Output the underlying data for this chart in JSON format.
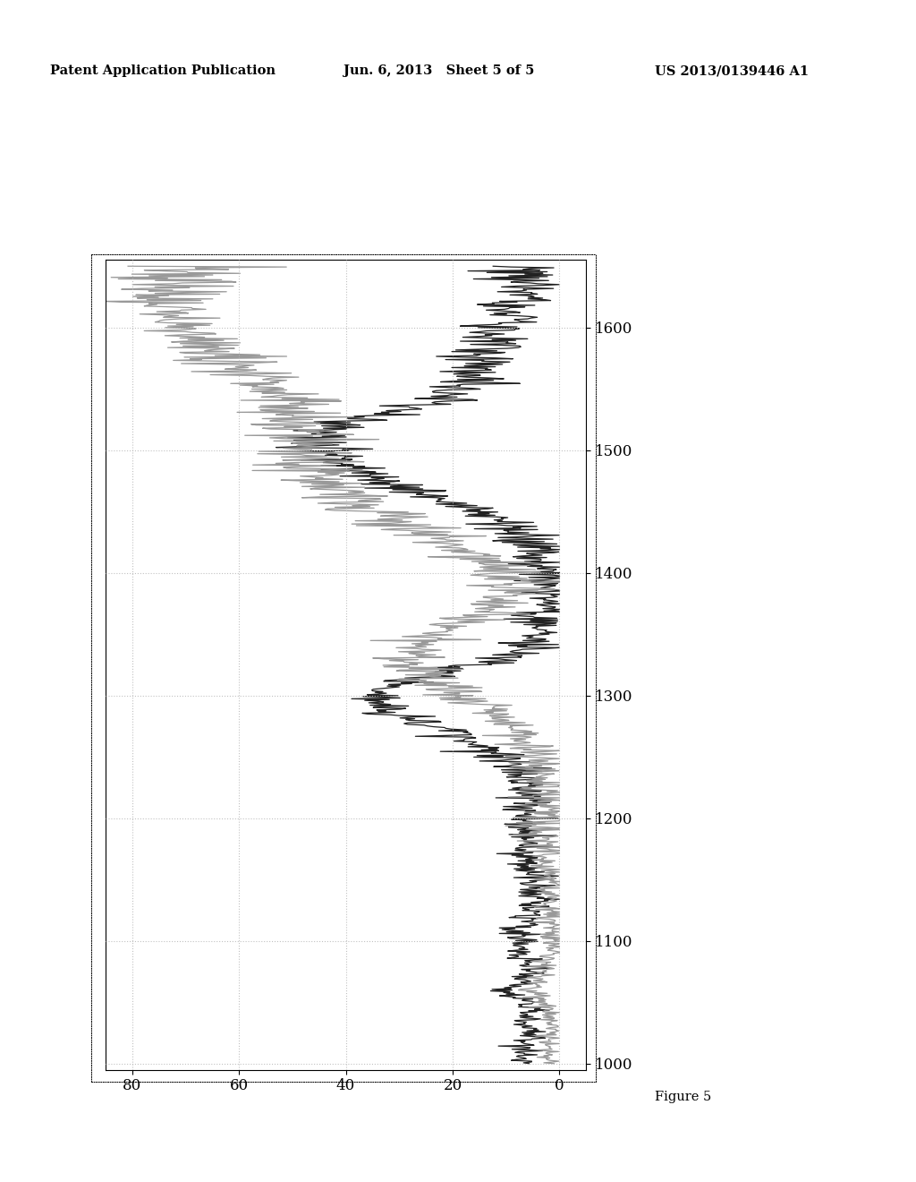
{
  "header_left": "Patent Application Publication",
  "header_mid": "Jun. 6, 2013   Sheet 5 of 5",
  "header_right": "US 2013/0139446 A1",
  "figure_label": "Figure 5",
  "x_ticks": [
    80,
    60,
    40,
    20,
    0
  ],
  "x_tick_labels": [
    "80",
    "60",
    "40",
    "20",
    "0"
  ],
  "y_ticks": [
    1000,
    1100,
    1200,
    1300,
    1400,
    1500,
    1600
  ],
  "y_range": [
    995,
    1655
  ],
  "x_range": [
    85,
    -5
  ],
  "background_color": "#ffffff",
  "plot_bg_color": "#ffffff",
  "line_dark_color": "#222222",
  "line_light_color": "#999999",
  "grid_color": "#bbbbbb",
  "grid_style": ":"
}
